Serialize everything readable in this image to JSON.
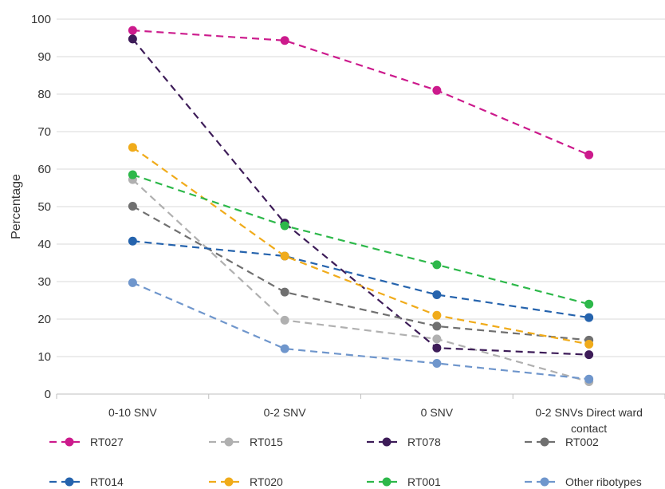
{
  "chart_data": {
    "type": "line",
    "title": "",
    "xlabel": "",
    "ylabel": "Percentage",
    "ylim": [
      0,
      100
    ],
    "yticks": [
      0,
      10,
      20,
      30,
      40,
      50,
      60,
      70,
      80,
      90,
      100
    ],
    "categories": [
      "0-10 SNV",
      "0-2 SNV",
      "0 SNV",
      "0-2 SNVs Direct ward contact"
    ],
    "grid": true,
    "legend_position": "bottom",
    "line_style": "dashed",
    "series": [
      {
        "name": "RT027",
        "color": "#cc1a8c",
        "values": [
          97,
          94.3,
          81,
          63.8
        ]
      },
      {
        "name": "RT015",
        "color": "#b0b0b0",
        "values": [
          57.2,
          19.7,
          14.7,
          3.3
        ]
      },
      {
        "name": "RT078",
        "color": "#3d1c58",
        "values": [
          94.7,
          45.6,
          12.3,
          10.5
        ]
      },
      {
        "name": "RT002",
        "color": "#707070",
        "values": [
          50.1,
          27.2,
          18.1,
          14.4
        ]
      },
      {
        "name": "RT014",
        "color": "#2563ad",
        "values": [
          40.8,
          36.8,
          26.5,
          20.4
        ]
      },
      {
        "name": "RT020",
        "color": "#f0ab1a",
        "values": [
          65.8,
          36.8,
          21,
          13.3
        ]
      },
      {
        "name": "RT001",
        "color": "#2db84a",
        "values": [
          58.5,
          44.9,
          34.5,
          24
        ]
      },
      {
        "name": "Other ribotypes",
        "color": "#6f96cc",
        "values": [
          29.7,
          12.1,
          8.2,
          4
        ]
      }
    ]
  }
}
